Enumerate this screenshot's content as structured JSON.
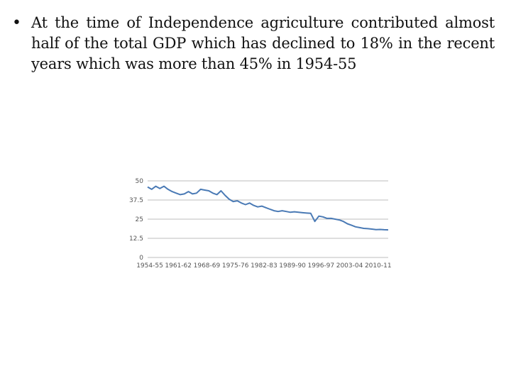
{
  "slide": {
    "bullet_symbol": "•",
    "bullet_text": "At the time of Independence agriculture contributed almost half of the total GDP which has declined to 18% in the recent years which was more than 45% in 1954-55"
  },
  "colors": {
    "line": "#4a7ab5",
    "grid": "#bdbdbd",
    "axis_text": "#555555"
  },
  "chart_data": {
    "type": "line",
    "title": "",
    "xlabel": "",
    "ylabel": "",
    "ylim": [
      0,
      50
    ],
    "yticks": [
      "0",
      "12.5",
      "25",
      "37.5",
      "50"
    ],
    "ytick_values": [
      0,
      12.5,
      25,
      37.5,
      50
    ],
    "xtick_labels": [
      "1954-55",
      "1961-62",
      "1968-69",
      "1975-76",
      "1982-83",
      "1989-90",
      "1996-97",
      "2003-04",
      "2010-11"
    ],
    "xtick_index": [
      0,
      7,
      14,
      21,
      28,
      35,
      42,
      49,
      56
    ],
    "grid": true,
    "legend": "none",
    "series": [
      {
        "values": [
          46,
          44.5,
          46.5,
          45,
          46.5,
          44.5,
          43,
          42,
          41,
          41.5,
          43,
          41.5,
          42,
          44.5,
          44,
          43.5,
          42,
          41,
          43.5,
          40.5,
          38,
          36.5,
          37,
          35.5,
          34.5,
          35.5,
          34,
          33,
          33.5,
          32.5,
          31.5,
          30.5,
          30,
          30.5,
          30,
          29.5,
          29.8,
          29.5,
          29.2,
          29,
          28.8,
          23.5,
          27,
          26.5,
          25.5,
          25.5,
          25,
          24.5,
          23.5,
          22,
          21,
          20,
          19.5,
          19,
          18.8,
          18.5,
          18.2,
          18.3,
          18.1,
          18
        ]
      }
    ]
  }
}
